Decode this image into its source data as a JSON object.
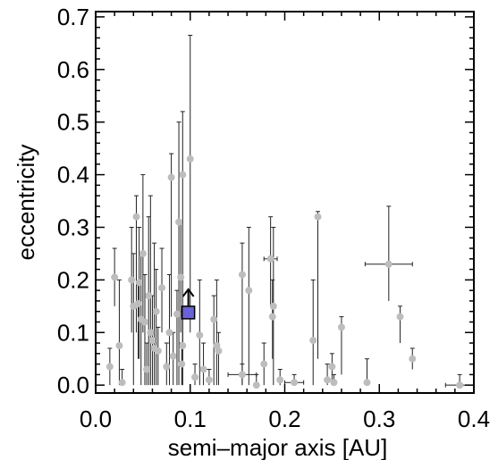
{
  "chart_data": {
    "type": "scatter",
    "xlabel": "semi–major axis [AU]",
    "ylabel": "eccentricity",
    "xlim": [
      0.0,
      0.4
    ],
    "ylim": [
      -0.015,
      0.71
    ],
    "xticks": [
      0.0,
      0.1,
      0.2,
      0.3,
      0.4
    ],
    "xtick_labels": [
      "0.0",
      "0.1",
      "0.2",
      "0.3",
      "0.4"
    ],
    "yticks": [
      0.0,
      0.1,
      0.2,
      0.3,
      0.4,
      0.5,
      0.6,
      0.7
    ],
    "ytick_labels": [
      "0.0",
      "0.1",
      "0.2",
      "0.3",
      "0.4",
      "0.5",
      "0.6",
      "0.7"
    ],
    "grid": false,
    "colors": {
      "points": "#bdbdbd",
      "errorbars": "#222222",
      "highlight": "#6a62d8",
      "axes": "#000000"
    },
    "series": [
      {
        "points": [
          {
            "x": 0.015,
            "y": 0.035,
            "ylo": 0.0,
            "yhi": 0.07
          },
          {
            "x": 0.02,
            "y": 0.205,
            "ylo": 0.15,
            "yhi": 0.26
          },
          {
            "x": 0.025,
            "y": 0.075,
            "ylo": 0.0,
            "yhi": 0.2
          },
          {
            "x": 0.028,
            "y": 0.005,
            "ylo": 0.0,
            "yhi": 0.03
          },
          {
            "x": 0.038,
            "y": 0.2,
            "ylo": 0.1,
            "yhi": 0.3
          },
          {
            "x": 0.04,
            "y": 0.15,
            "ylo": 0.0,
            "yhi": 0.25
          },
          {
            "x": 0.043,
            "y": 0.32,
            "ylo": 0.1,
            "yhi": 0.36
          },
          {
            "x": 0.045,
            "y": 0.155,
            "ylo": 0.05,
            "yhi": 0.19
          },
          {
            "x": 0.046,
            "y": 0.195,
            "ylo": 0.05,
            "yhi": 0.3
          },
          {
            "x": 0.048,
            "y": 0.125,
            "ylo": 0.0,
            "yhi": 0.25
          },
          {
            "x": 0.05,
            "y": 0.25,
            "ylo": 0.1,
            "yhi": 0.4
          },
          {
            "x": 0.052,
            "y": 0.12,
            "ylo": 0.0,
            "yhi": 0.21
          },
          {
            "x": 0.054,
            "y": 0.03,
            "ylo": 0.0,
            "yhi": 0.08
          },
          {
            "x": 0.056,
            "y": 0.17,
            "ylo": 0.0,
            "yhi": 0.32
          },
          {
            "x": 0.058,
            "y": 0.1,
            "ylo": 0.0,
            "yhi": 0.36
          },
          {
            "x": 0.06,
            "y": 0.085,
            "ylo": 0.0,
            "yhi": 0.17
          },
          {
            "x": 0.062,
            "y": 0.07,
            "ylo": 0.0,
            "yhi": 0.27
          },
          {
            "x": 0.064,
            "y": 0.14,
            "ylo": 0.0,
            "yhi": 0.22
          },
          {
            "x": 0.066,
            "y": 0.065,
            "ylo": 0.0,
            "yhi": 0.11
          },
          {
            "x": 0.07,
            "y": 0.185,
            "ylo": 0.1,
            "yhi": 0.26
          },
          {
            "x": 0.075,
            "y": 0.035,
            "ylo": 0.0,
            "yhi": 0.08
          },
          {
            "x": 0.078,
            "y": 0.1,
            "ylo": 0.0,
            "yhi": 0.21
          },
          {
            "x": 0.08,
            "y": 0.395,
            "ylo": 0.13,
            "yhi": 0.44
          },
          {
            "x": 0.082,
            "y": 0.055,
            "ylo": 0.0,
            "yhi": 0.1
          },
          {
            "x": 0.086,
            "y": 0.135,
            "ylo": 0.0,
            "yhi": 0.18
          },
          {
            "x": 0.088,
            "y": 0.31,
            "ylo": 0.0,
            "yhi": 0.5
          },
          {
            "x": 0.09,
            "y": 0.205,
            "ylo": 0.1,
            "yhi": 0.31
          },
          {
            "x": 0.092,
            "y": 0.4,
            "ylo": 0.0,
            "yhi": 0.52
          },
          {
            "x": 0.091,
            "y": 0.04,
            "ylo": 0.0,
            "yhi": 0.08
          },
          {
            "x": 0.092,
            "y": 0.075,
            "ylo": 0.0,
            "yhi": 0.14
          },
          {
            "x": 0.1,
            "y": 0.43,
            "ylo": 0.1,
            "yhi": 0.665
          },
          {
            "x": 0.105,
            "y": 0.015,
            "ylo": 0.0,
            "yhi": 0.04
          },
          {
            "x": 0.11,
            "y": 0.095,
            "ylo": 0.0,
            "yhi": 0.2
          },
          {
            "x": 0.114,
            "y": 0.03,
            "ylo": 0.0,
            "yhi": 0.08
          },
          {
            "x": 0.12,
            "y": 0.01,
            "ylo": 0.0,
            "yhi": 0.03
          },
          {
            "x": 0.125,
            "y": 0.125,
            "ylo": 0.0,
            "yhi": 0.17
          },
          {
            "x": 0.128,
            "y": 0.075,
            "ylo": 0.0,
            "yhi": 0.2
          },
          {
            "x": 0.13,
            "y": 0.065,
            "ylo": 0.0,
            "yhi": 0.1
          },
          {
            "x": 0.155,
            "y": 0.21,
            "ylo": 0.0,
            "yhi": 0.27
          },
          {
            "x": 0.155,
            "y": 0.02,
            "xlo": 0.14,
            "xhi": 0.17,
            "ylo": 0.0,
            "yhi": 0.04
          },
          {
            "x": 0.162,
            "y": 0.18,
            "ylo": 0.0,
            "yhi": 0.3
          },
          {
            "x": 0.17,
            "y": 0.0,
            "ylo": 0.0,
            "yhi": 0.02
          },
          {
            "x": 0.178,
            "y": 0.04,
            "ylo": 0.0,
            "yhi": 0.08
          },
          {
            "x": 0.185,
            "y": 0.24,
            "xlo": 0.178,
            "xhi": 0.192,
            "ylo": 0.15,
            "yhi": 0.32
          },
          {
            "x": 0.187,
            "y": 0.13,
            "ylo": 0.05,
            "yhi": 0.2
          },
          {
            "x": 0.188,
            "y": 0.15,
            "ylo": 0.0,
            "yhi": 0.3
          },
          {
            "x": 0.195,
            "y": 0.01,
            "ylo": 0.0,
            "yhi": 0.03
          },
          {
            "x": 0.21,
            "y": 0.005,
            "xlo": 0.2,
            "xhi": 0.22,
            "ylo": 0.0,
            "yhi": 0.02
          },
          {
            "x": 0.23,
            "y": 0.085,
            "ylo": 0.0,
            "yhi": 0.2
          },
          {
            "x": 0.235,
            "y": 0.32,
            "ylo": 0.05,
            "yhi": 0.33
          },
          {
            "x": 0.245,
            "y": 0.01,
            "ylo": 0.0,
            "yhi": 0.04
          },
          {
            "x": 0.25,
            "y": 0.035,
            "ylo": 0.0,
            "yhi": 0.06
          },
          {
            "x": 0.252,
            "y": 0.005,
            "ylo": 0.0,
            "yhi": 0.02
          },
          {
            "x": 0.26,
            "y": 0.11,
            "ylo": 0.02,
            "yhi": 0.13
          },
          {
            "x": 0.287,
            "y": 0.005,
            "ylo": 0.0,
            "yhi": 0.05
          },
          {
            "x": 0.31,
            "y": 0.23,
            "xlo": 0.285,
            "xhi": 0.335,
            "ylo": 0.16,
            "yhi": 0.34
          },
          {
            "x": 0.322,
            "y": 0.13,
            "ylo": 0.08,
            "yhi": 0.15
          },
          {
            "x": 0.335,
            "y": 0.05,
            "ylo": 0.03,
            "yhi": 0.07
          },
          {
            "x": 0.385,
            "y": 0.0,
            "xlo": 0.37,
            "xhi": 0.4,
            "ylo": 0.0,
            "yhi": 0.02
          }
        ]
      }
    ],
    "highlight": {
      "x": 0.098,
      "y": 0.138,
      "marker": "square",
      "lower_limit_arrow": true
    }
  }
}
